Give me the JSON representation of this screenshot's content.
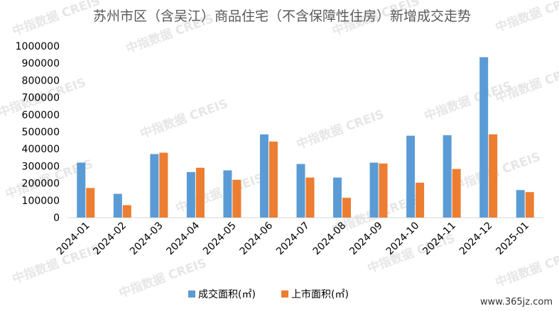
{
  "title": "苏州市区（含吴江）商品住宅（不含保障性住房）新增成交走势",
  "watermark": "中指数据 CREIS",
  "site_label": "www.365jz.com",
  "chart_data": {
    "type": "bar",
    "title": "苏州市区（含吴江）商品住宅（不含保障性住房）新增成交走势",
    "categories": [
      "2024-01",
      "2024-02",
      "2024-03",
      "2024-04",
      "2024-05",
      "2024-06",
      "2024-07",
      "2024-08",
      "2024-09",
      "2024-10",
      "2024-11",
      "2024-12",
      "2025-01"
    ],
    "series": [
      {
        "name": "成交面积(㎡)",
        "color": "#5b9bd5",
        "values": [
          320000,
          138000,
          370000,
          265000,
          275000,
          485000,
          312000,
          233000,
          320000,
          477000,
          480000,
          935000,
          160000
        ]
      },
      {
        "name": "上市面积(㎡)",
        "color": "#ed7d31",
        "values": [
          172000,
          72000,
          378000,
          290000,
          220000,
          443000,
          233000,
          115000,
          315000,
          203000,
          283000,
          485000,
          148000
        ]
      }
    ],
    "ylim": [
      0,
      1000000
    ],
    "yticks": [
      "0",
      "100000",
      "200000",
      "300000",
      "400000",
      "500000",
      "600000",
      "700000",
      "800000",
      "900000",
      "1000000"
    ],
    "grid": false,
    "legend_position": "bottom-center"
  }
}
